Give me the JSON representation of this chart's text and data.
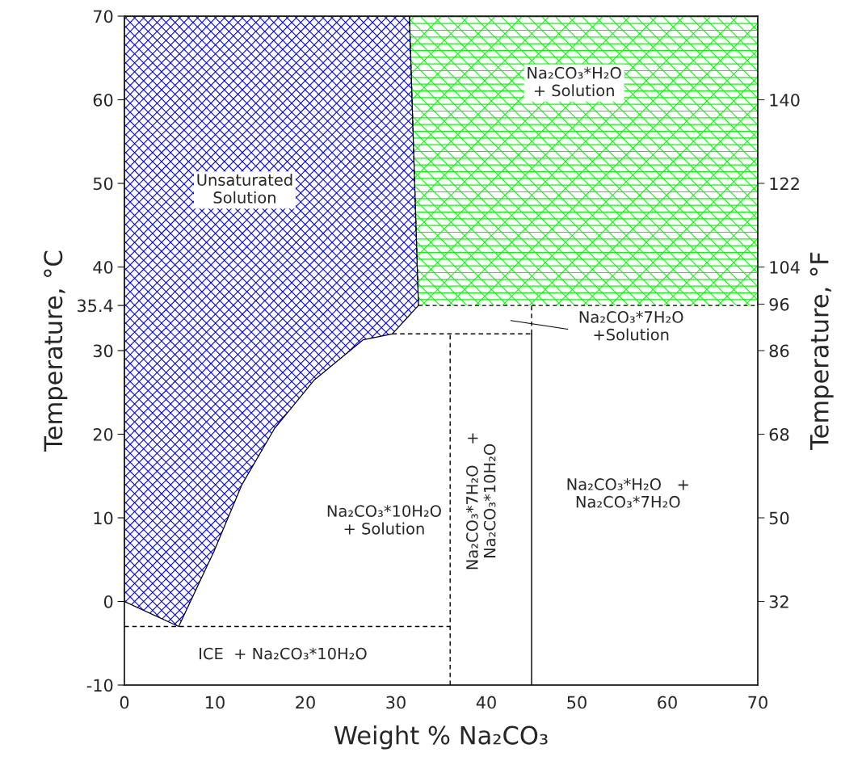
{
  "chart_data": {
    "type": "area",
    "xlabel": "Weight % Na₂CO₃",
    "ylabel": "Temperature, °C",
    "y2label": "Temperature, °F",
    "xlim": [
      0,
      70
    ],
    "xticks": [
      0,
      10,
      20,
      30,
      40,
      50,
      60,
      70
    ],
    "ylim": [
      -10,
      70
    ],
    "yticks": [
      -10,
      0,
      10,
      20,
      30,
      {
        "value": 35.4,
        "label": "35.4"
      },
      40,
      50,
      60,
      70
    ],
    "y2lim": [
      14,
      158
    ],
    "y2ticks": [
      32,
      50,
      68,
      86,
      96,
      104,
      122,
      140
    ],
    "grid": false,
    "marker": "none",
    "series": [
      {
        "color": "#0000ff",
        "x": [
          0,
          6,
          9.9,
          13,
          16.6,
          21,
          26.4,
          29.6,
          32.5,
          31.5,
          0
        ],
        "values": [
          0,
          -3,
          6,
          14,
          20.7,
          26.5,
          31.3,
          32,
          35.4,
          70,
          70
        ]
      },
      {
        "color": "#00ff00",
        "line_style": "dashed",
        "x": [
          32.5,
          70,
          70,
          31.5
        ],
        "values": [
          35.4,
          35.4,
          70,
          70
        ]
      },
      {
        "type": "line",
        "line_style": "dashed",
        "color": "#000000",
        "x": [
          0,
          36
        ],
        "values": [
          -3,
          -3
        ]
      },
      {
        "type": "line",
        "line_style": "dashed",
        "color": "#000000",
        "x": [
          36,
          36
        ],
        "values": [
          -10,
          32
        ]
      },
      {
        "type": "line",
        "line_style": "dashed",
        "color": "#000000",
        "x": [
          29.6,
          45
        ],
        "values": [
          32,
          32
        ]
      },
      {
        "type": "line",
        "line_style": "dashed",
        "color": "#000000",
        "x": [
          45,
          45
        ],
        "values": [
          32,
          35.4
        ]
      },
      {
        "type": "line",
        "line_style": "solid",
        "color": "#000000",
        "x": [
          45,
          45
        ],
        "values": [
          -10,
          32
        ]
      }
    ],
    "annotations": [
      "Unsaturated\nSolution",
      "Na₂CO₃*H₂O\n+ Solution",
      "Na₂CO₃*7H₂O\n+Solution",
      "Na₂CO₃*10H₂O\n+ Solution",
      "Na₂CO₃*7H₂O    +\nNa₂CO₃*10H₂O",
      "Na₂CO₃*H₂O   +\nNa₂CO₃*7H₂O",
      "ICE  + Na₂CO₃*10H₂O"
    ]
  }
}
